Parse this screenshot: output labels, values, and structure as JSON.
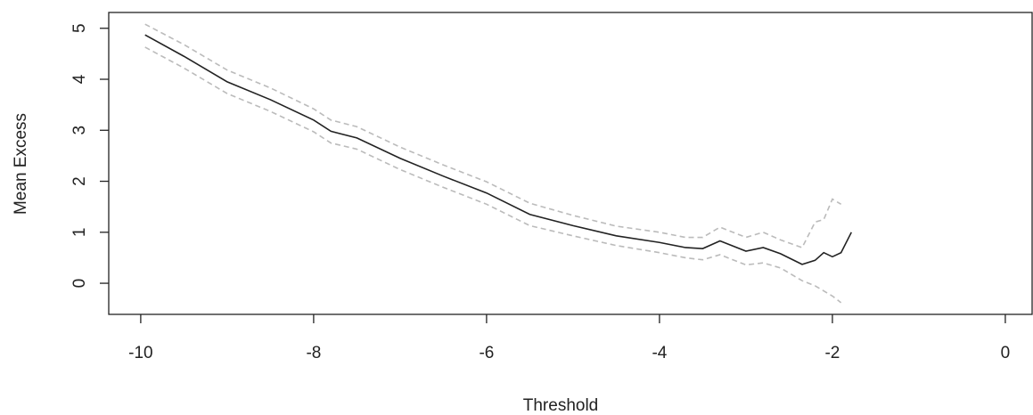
{
  "chart_data": {
    "type": "line",
    "x_label": "Threshold",
    "y_label": "Mean Excess",
    "x": [
      -9.95,
      -9.5,
      -9,
      -8.5,
      -8,
      -7.8,
      -7.5,
      -7,
      -6.5,
      -6,
      -5.5,
      -5,
      -4.5,
      -4,
      -3.7,
      -3.5,
      -3.3,
      -3.0,
      -2.8,
      -2.6,
      -2.35,
      -2.2,
      -2.1,
      -2.0,
      -1.9,
      -1.78
    ],
    "series": [
      {
        "color": "#222222",
        "dashed": false,
        "values": [
          4.87,
          4.45,
          3.95,
          3.6,
          3.2,
          2.98,
          2.85,
          2.45,
          2.1,
          1.77,
          1.35,
          1.13,
          0.93,
          0.8,
          0.7,
          0.68,
          0.83,
          0.63,
          0.7,
          0.58,
          0.37,
          0.45,
          0.6,
          0.52,
          0.6,
          1.0
        ]
      },
      {
        "color": "#bbbbbb",
        "dashed": true,
        "values": [
          5.08,
          4.68,
          4.18,
          3.83,
          3.42,
          3.2,
          3.07,
          2.67,
          2.32,
          1.99,
          1.57,
          1.33,
          1.12,
          1.0,
          0.9,
          0.9,
          1.1,
          0.9,
          1.0,
          0.85,
          0.7,
          1.2,
          1.25,
          1.65,
          1.55,
          null
        ]
      },
      {
        "color": "#bbbbbb",
        "dashed": true,
        "values": [
          4.63,
          4.22,
          3.72,
          3.37,
          2.97,
          2.75,
          2.63,
          2.23,
          1.88,
          1.55,
          1.13,
          0.93,
          0.74,
          0.6,
          0.5,
          0.46,
          0.56,
          0.36,
          0.4,
          0.3,
          0.05,
          -0.05,
          -0.15,
          -0.25,
          -0.38,
          null
        ]
      }
    ],
    "xlim": [
      -10.37,
      0.31
    ],
    "xticks": [
      -10,
      -8,
      -6,
      -4,
      -2,
      0
    ],
    "ylim": [
      -0.61,
      5.31
    ],
    "yticks": [
      0,
      1,
      2,
      3,
      4,
      5
    ],
    "grid": false
  }
}
